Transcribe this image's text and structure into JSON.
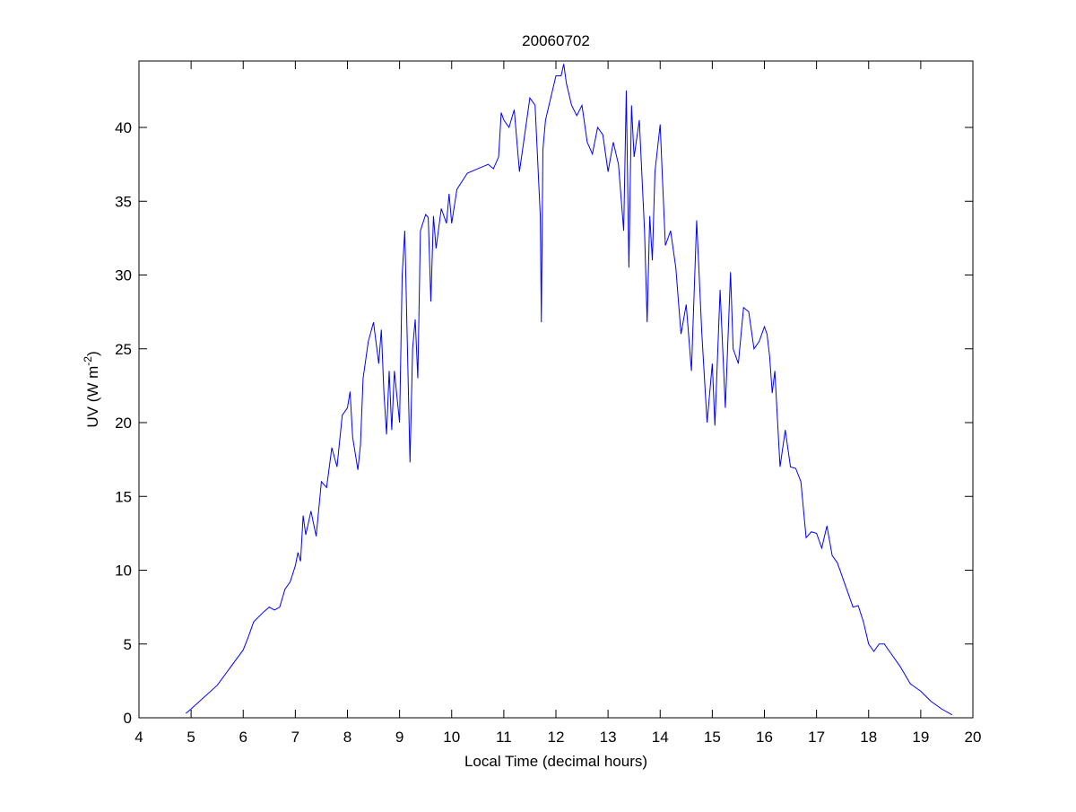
{
  "chart_data": {
    "type": "line",
    "title": "20060702",
    "xlabel": "Local Time (decimal hours)",
    "ylabel": {
      "text": "UV (W m",
      "superscript": "-2",
      "suffix": ")"
    },
    "xlim": [
      4,
      20
    ],
    "xticks": [
      4,
      5,
      6,
      7,
      8,
      9,
      10,
      11,
      12,
      13,
      14,
      15,
      16,
      17,
      18,
      19,
      20
    ],
    "ylim": [
      0,
      44.5
    ],
    "yticks": [
      0,
      5,
      10,
      15,
      20,
      25,
      30,
      35,
      40
    ],
    "grid": false,
    "series": [
      {
        "color": "#0000ff",
        "x": [
          4.9,
          5.0,
          5.5,
          6.0,
          6.1,
          6.2,
          6.4,
          6.5,
          6.6,
          6.7,
          6.8,
          6.9,
          7.0,
          7.05,
          7.1,
          7.15,
          7.2,
          7.3,
          7.4,
          7.5,
          7.6,
          7.7,
          7.8,
          7.9,
          8.0,
          8.05,
          8.1,
          8.2,
          8.25,
          8.3,
          8.4,
          8.5,
          8.6,
          8.65,
          8.7,
          8.75,
          8.8,
          8.85,
          8.9,
          9.0,
          9.05,
          9.1,
          9.2,
          9.25,
          9.3,
          9.35,
          9.4,
          9.5,
          9.55,
          9.6,
          9.65,
          9.7,
          9.8,
          9.9,
          9.95,
          10.0,
          10.1,
          10.3,
          10.5,
          10.7,
          10.8,
          10.9,
          10.95,
          11.0,
          11.1,
          11.2,
          11.3,
          11.4,
          11.5,
          11.6,
          11.7,
          11.72,
          11.75,
          11.8,
          11.9,
          12.0,
          12.1,
          12.15,
          12.2,
          12.3,
          12.4,
          12.5,
          12.6,
          12.7,
          12.8,
          12.9,
          13.0,
          13.1,
          13.2,
          13.3,
          13.35,
          13.4,
          13.45,
          13.5,
          13.6,
          13.7,
          13.75,
          13.8,
          13.85,
          13.9,
          14.0,
          14.05,
          14.1,
          14.2,
          14.3,
          14.4,
          14.5,
          14.6,
          14.7,
          14.8,
          14.9,
          15.0,
          15.05,
          15.15,
          15.25,
          15.35,
          15.4,
          15.5,
          15.6,
          15.7,
          15.8,
          15.9,
          16.0,
          16.05,
          16.1,
          16.15,
          16.2,
          16.3,
          16.4,
          16.5,
          16.6,
          16.7,
          16.8,
          16.9,
          17.0,
          17.1,
          17.2,
          17.3,
          17.4,
          17.6,
          17.7,
          17.8,
          17.9,
          18.0,
          18.1,
          18.2,
          18.3,
          18.4,
          18.6,
          18.8,
          19.0,
          19.2,
          19.4,
          19.6
        ],
        "values": [
          0.3,
          0.6,
          2.2,
          4.6,
          5.5,
          6.5,
          7.2,
          7.5,
          7.3,
          7.5,
          8.7,
          9.2,
          10.3,
          11.2,
          10.6,
          13.7,
          12.4,
          14.0,
          12.3,
          16.0,
          15.6,
          18.3,
          17.0,
          20.5,
          21.0,
          22.1,
          19.0,
          16.8,
          18.5,
          23.0,
          25.5,
          26.8,
          24.0,
          26.3,
          22.0,
          19.2,
          23.5,
          19.5,
          23.5,
          20.0,
          30.0,
          33.0,
          17.3,
          25.0,
          27.0,
          23.0,
          33.0,
          34.1,
          33.9,
          28.2,
          34.0,
          31.8,
          34.5,
          33.5,
          35.5,
          33.5,
          35.8,
          36.9,
          37.2,
          37.5,
          37.2,
          38.0,
          41.0,
          40.5,
          40.0,
          41.2,
          37.0,
          39.5,
          42.0,
          41.5,
          34.0,
          26.8,
          38.5,
          40.5,
          42.0,
          43.5,
          43.5,
          44.3,
          43.0,
          41.5,
          40.8,
          41.5,
          39.0,
          38.2,
          40.0,
          39.5,
          37.0,
          39.0,
          37.5,
          33.0,
          42.5,
          30.5,
          41.5,
          38.0,
          40.5,
          33.0,
          26.8,
          34.0,
          31.0,
          37.0,
          40.2,
          36.0,
          32.0,
          33.0,
          30.5,
          26.0,
          28.0,
          23.5,
          33.7,
          26.0,
          20.0,
          24.0,
          19.8,
          29.0,
          21.0,
          30.2,
          25.0,
          24.0,
          27.8,
          27.5,
          25.0,
          25.5,
          26.5,
          26.0,
          24.5,
          22.0,
          23.5,
          17.0,
          19.5,
          17.0,
          16.9,
          16.0,
          12.2,
          12.6,
          12.5,
          11.5,
          13.0,
          11.0,
          10.5,
          8.5,
          7.5,
          7.6,
          6.5,
          5.0,
          4.5,
          5.0,
          5.0,
          4.5,
          3.5,
          2.3,
          1.8,
          1.1,
          0.6,
          0.2
        ]
      }
    ]
  }
}
